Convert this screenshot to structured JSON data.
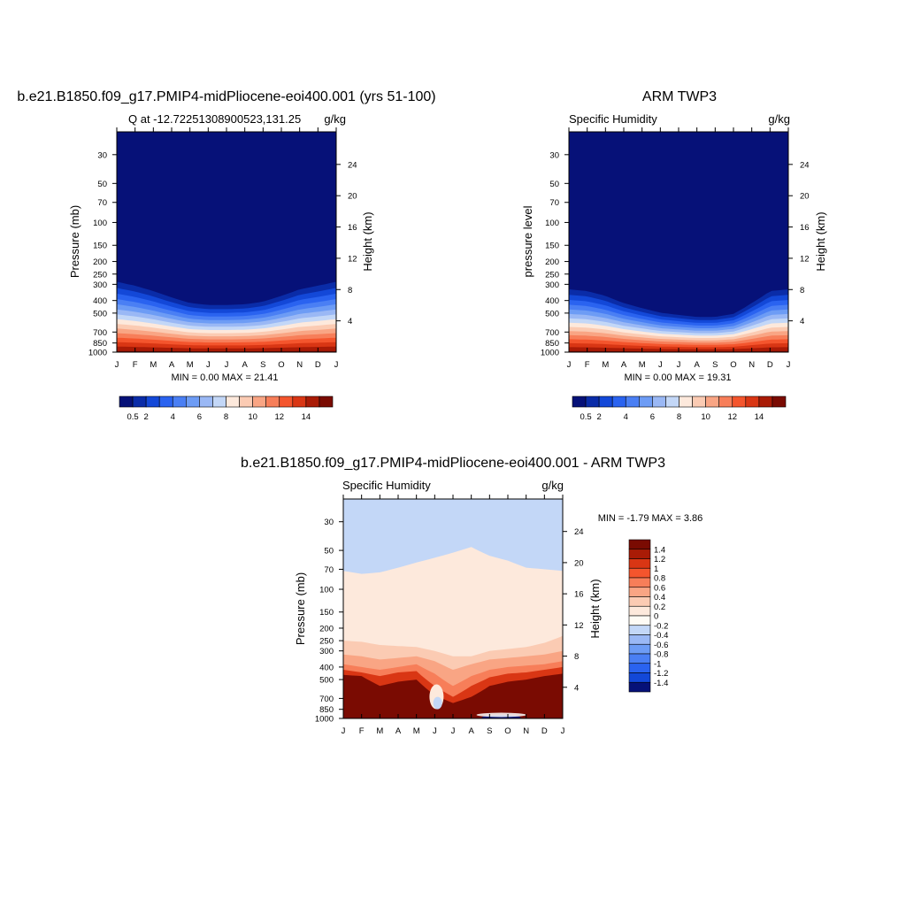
{
  "figure": {
    "panels": [
      {
        "main_title": "b.e21.B1850.f09_g17.PMIP4-midPliocene-eoi400.001 (yrs 51-100)",
        "left_string": "Q at -12.72251308900523,131.25",
        "right_string": "g/kg",
        "ylabel": "Pressure (mb)",
        "y2label": "Height (km)",
        "min_max": "MIN =   0.00 MAX =  21.41"
      },
      {
        "main_title": "ARM TWP3",
        "left_string": "Specific Humidity",
        "right_string": "g/kg",
        "ylabel": "pressure level",
        "y2label": "Height (km)",
        "min_max": "MIN =   0.00 MAX =  19.31"
      },
      {
        "main_title": "b.e21.B1850.f09_g17.PMIP4-midPliocene-eoi400.001 - ARM TWP3",
        "left_string": "Specific Humidity",
        "right_string": "g/kg",
        "ylabel": "Pressure (mb)",
        "y2label": "Height (km)",
        "min_max": "MIN =  -1.79 MAX =   3.86"
      }
    ]
  },
  "chart_data": [
    {
      "type": "heatmap",
      "title": "b.e21.B1850.f09_g17.PMIP4-midPliocene-eoi400.001 (yrs 51-100)",
      "subtitle_left": "Q at -12.72251308900523,131.25",
      "units": "g/kg",
      "x_ticks": [
        "J",
        "F",
        "M",
        "A",
        "M",
        "J",
        "J",
        "A",
        "S",
        "O",
        "N",
        "D",
        "J"
      ],
      "y_ticks": [
        30,
        50,
        70,
        100,
        150,
        200,
        250,
        300,
        400,
        500,
        700,
        850,
        1000
      ],
      "y_range": [
        20,
        1000
      ],
      "y_scale": "log",
      "y2_ticks": [
        4,
        8,
        12,
        16,
        20,
        24
      ],
      "xlabel": "",
      "ylabel": "Pressure (mb)",
      "y2label": "Height (km)",
      "min": 0.0,
      "max": 21.41,
      "colorbar": {
        "orientation": "horizontal",
        "levels": [
          0.5,
          1,
          2,
          3,
          4,
          5,
          6,
          7,
          8,
          9,
          10,
          11,
          12,
          13,
          14
        ],
        "labels": [
          "0.5",
          "2",
          "4",
          "6",
          "8",
          "10",
          "12",
          "14"
        ],
        "colors": [
          "#061178",
          "#0a2ca8",
          "#1348d8",
          "#2a63f0",
          "#4a7ff4",
          "#6d9cf5",
          "#9ab8f5",
          "#c3d7f7",
          "#fde9dc",
          "#fbcbb3",
          "#f9a584",
          "#f77e59",
          "#f4552d",
          "#d93614",
          "#a91b06",
          "#7a0b02"
        ]
      },
      "profile_note": "humidity increases toward surface; dry upper air above ~250 mb",
      "surface_boundary_mb_by_month": [
        250,
        270,
        300,
        340,
        380,
        395,
        395,
        390,
        370,
        330,
        290,
        270,
        250
      ]
    },
    {
      "type": "heatmap",
      "title": "ARM TWP3",
      "subtitle_left": "Specific Humidity",
      "units": "g/kg",
      "x_ticks": [
        "J",
        "F",
        "M",
        "A",
        "M",
        "J",
        "J",
        "A",
        "S",
        "O",
        "N",
        "D",
        "J"
      ],
      "y_ticks": [
        30,
        50,
        70,
        100,
        150,
        200,
        250,
        300,
        400,
        500,
        700,
        850,
        1000
      ],
      "y_range": [
        20,
        1000
      ],
      "y_scale": "log",
      "y2_ticks": [
        4,
        8,
        12,
        16,
        20,
        24
      ],
      "xlabel": "",
      "ylabel": "pressure level",
      "y2label": "Height (km)",
      "min": 0.0,
      "max": 19.31,
      "colorbar": {
        "orientation": "horizontal",
        "levels": [
          0.5,
          1,
          2,
          3,
          4,
          5,
          6,
          7,
          8,
          9,
          10,
          11,
          12,
          13,
          14
        ],
        "labels": [
          "0.5",
          "2",
          "4",
          "6",
          "8",
          "10",
          "12",
          "14"
        ],
        "colors": [
          "#061178",
          "#0a2ca8",
          "#1348d8",
          "#2a63f0",
          "#4a7ff4",
          "#6d9cf5",
          "#9ab8f5",
          "#c3d7f7",
          "#fde9dc",
          "#fbcbb3",
          "#f9a584",
          "#f77e59",
          "#f4552d",
          "#d93614",
          "#a91b06",
          "#7a0b02"
        ]
      },
      "surface_boundary_mb_by_month": [
        290,
        300,
        330,
        380,
        420,
        460,
        480,
        500,
        500,
        470,
        380,
        300,
        290
      ]
    },
    {
      "type": "heatmap",
      "title": "b.e21.B1850.f09_g17.PMIP4-midPliocene-eoi400.001 - ARM TWP3",
      "subtitle_left": "Specific Humidity",
      "units": "g/kg",
      "x_ticks": [
        "J",
        "F",
        "M",
        "A",
        "M",
        "J",
        "J",
        "A",
        "S",
        "O",
        "N",
        "D",
        "J"
      ],
      "y_ticks": [
        30,
        50,
        70,
        100,
        150,
        200,
        250,
        300,
        400,
        500,
        700,
        850,
        1000
      ],
      "y_range": [
        20,
        1000
      ],
      "y_scale": "log",
      "y2_ticks": [
        4,
        8,
        12,
        16,
        20,
        24
      ],
      "xlabel": "",
      "ylabel": "Pressure (mb)",
      "y2label": "Height (km)",
      "min": -1.79,
      "max": 3.86,
      "colorbar": {
        "orientation": "vertical",
        "levels": [
          -1.4,
          -1.2,
          -1,
          -0.8,
          -0.6,
          -0.4,
          -0.2,
          0,
          0.2,
          0.4,
          0.6,
          0.8,
          1,
          1.2,
          1.4
        ],
        "labels": [
          "1.4",
          "1.2",
          "1",
          "0.8",
          "0.6",
          "0.4",
          "0.2",
          "0",
          "-0.2",
          "-0.4",
          "-0.6",
          "-0.8",
          "-1",
          "-1.2",
          "-1.4"
        ],
        "colors": [
          "#7a0b02",
          "#a91b06",
          "#d93614",
          "#f4552d",
          "#f77e59",
          "#f9a584",
          "#fbcbb3",
          "#fde9dc",
          "#fefbf5",
          "#c3d7f7",
          "#9ab8f5",
          "#6d9cf5",
          "#4a7ff4",
          "#2a63f0",
          "#1348d8",
          "#061178"
        ]
      },
      "upper_boundary_mb_by_month": [
        72,
        76,
        74,
        68,
        62,
        57,
        52,
        47,
        55,
        60,
        68,
        70,
        72
      ]
    }
  ]
}
